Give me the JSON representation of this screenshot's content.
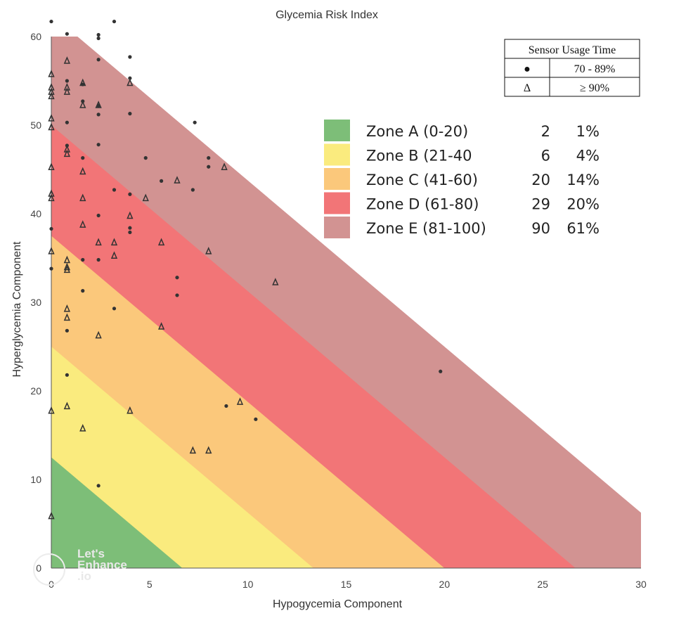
{
  "chart_data": {
    "type": "scatter",
    "title": "Glycemia Risk Index",
    "xlabel": "Hypogycemia Component",
    "ylabel": "Hyperglycemia Component",
    "xlim": [
      0,
      30
    ],
    "ylim": [
      0,
      60
    ],
    "xticks": [
      "0",
      "5",
      "10",
      "15",
      "20",
      "25",
      "30"
    ],
    "yticks": [
      "0",
      "10",
      "20",
      "30",
      "40",
      "50",
      "60"
    ],
    "zones": [
      {
        "label": "Zone A (0-20)",
        "count": "2",
        "percent": "1%",
        "color": "#7dbe78",
        "gri_min": 0,
        "gri_max": 20
      },
      {
        "label": "Zone B (21-40",
        "count": "6",
        "percent": "4%",
        "color": "#faeb7e",
        "gri_min": 20,
        "gri_max": 40
      },
      {
        "label": "Zone C (41-60)",
        "count": "20",
        "percent": "14%",
        "color": "#fbc87b",
        "gri_min": 40,
        "gri_max": 60
      },
      {
        "label": "Zone D (61-80)",
        "count": "29",
        "percent": "20%",
        "color": "#f27577",
        "gri_min": 60,
        "gri_max": 80
      },
      {
        "label": "Zone E (81-100)",
        "count": "90",
        "percent": "61%",
        "color": "#d29392",
        "gri_min": 80,
        "gri_max": 100
      }
    ],
    "sensor_legend": {
      "title": "Sensor Usage Time",
      "rows": [
        {
          "symbol": "●",
          "label": "70 - 89%"
        },
        {
          "symbol": "Δ",
          "label": "≥ 90%"
        }
      ]
    },
    "series": [
      {
        "name": "70 - 89%",
        "marker": "dot",
        "points": [
          [
            0,
            61.7
          ],
          [
            0.8,
            60.3
          ],
          [
            2.4,
            60.2
          ],
          [
            2.4,
            59.8
          ],
          [
            3.2,
            61.7
          ],
          [
            4,
            57.7
          ],
          [
            2.4,
            57.4
          ],
          [
            4,
            55.3
          ],
          [
            0.8,
            55
          ],
          [
            1.6,
            54.6
          ],
          [
            1.6,
            52.7
          ],
          [
            2.4,
            52.2
          ],
          [
            2.4,
            51.2
          ],
          [
            4,
            51.3
          ],
          [
            0.8,
            50.3
          ],
          [
            7.3,
            50.3
          ],
          [
            2.4,
            47.8
          ],
          [
            0.8,
            47.7
          ],
          [
            4.8,
            46.3
          ],
          [
            8,
            46.3
          ],
          [
            1.6,
            46.3
          ],
          [
            8,
            45.3
          ],
          [
            5.6,
            43.7
          ],
          [
            3.2,
            42.7
          ],
          [
            7.2,
            42.7
          ],
          [
            4,
            42.2
          ],
          [
            2.4,
            39.8
          ],
          [
            4,
            38.4
          ],
          [
            4,
            37.9
          ],
          [
            0,
            38.3
          ],
          [
            1.6,
            34.8
          ],
          [
            2.4,
            34.8
          ],
          [
            0,
            33.8
          ],
          [
            6.4,
            32.8
          ],
          [
            1.6,
            31.3
          ],
          [
            6.4,
            30.8
          ],
          [
            3.2,
            29.3
          ],
          [
            0.8,
            26.8
          ],
          [
            0.8,
            21.8
          ],
          [
            8.9,
            18.3
          ],
          [
            10.4,
            16.8
          ],
          [
            19.8,
            22.2
          ],
          [
            2.4,
            9.3
          ]
        ]
      },
      {
        "name": "≥ 90%",
        "marker": "triangle",
        "points": [
          [
            0,
            55.8
          ],
          [
            0,
            54.3
          ],
          [
            0,
            53.8
          ],
          [
            0,
            53.3
          ],
          [
            0,
            50.8
          ],
          [
            0,
            49.8
          ],
          [
            0,
            45.3
          ],
          [
            0,
            42.3
          ],
          [
            0,
            41.8
          ],
          [
            0,
            35.8
          ],
          [
            0,
            17.8
          ],
          [
            0,
            5.9
          ],
          [
            0.8,
            57.3
          ],
          [
            0.8,
            54.3
          ],
          [
            0.8,
            53.8
          ],
          [
            0.8,
            47.3
          ],
          [
            0.8,
            46.8
          ],
          [
            0.8,
            34.8
          ],
          [
            0.8,
            34
          ],
          [
            0.8,
            33.7
          ],
          [
            0.8,
            29.3
          ],
          [
            0.8,
            28.3
          ],
          [
            0.8,
            18.3
          ],
          [
            1.6,
            54.8
          ],
          [
            1.6,
            52.3
          ],
          [
            1.6,
            44.8
          ],
          [
            1.6,
            41.8
          ],
          [
            1.6,
            38.8
          ],
          [
            1.6,
            15.8
          ],
          [
            2.4,
            52.3
          ],
          [
            2.4,
            36.8
          ],
          [
            2.4,
            26.3
          ],
          [
            3.2,
            36.8
          ],
          [
            3.2,
            35.3
          ],
          [
            4,
            54.8
          ],
          [
            4,
            39.8
          ],
          [
            4,
            17.8
          ],
          [
            4.8,
            41.8
          ],
          [
            5.6,
            36.8
          ],
          [
            5.6,
            27.3
          ],
          [
            6.4,
            43.8
          ],
          [
            7.2,
            13.3
          ],
          [
            8,
            35.8
          ],
          [
            8,
            13.3
          ],
          [
            8.8,
            45.3
          ],
          [
            9.6,
            18.8
          ],
          [
            11.4,
            32.3
          ]
        ]
      }
    ],
    "watermark": [
      "Let's",
      "Enhance",
      ".io"
    ]
  }
}
